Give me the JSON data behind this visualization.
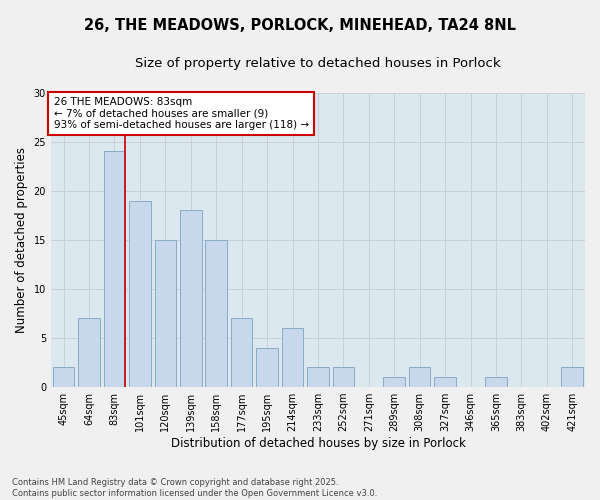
{
  "title_line1": "26, THE MEADOWS, PORLOCK, MINEHEAD, TA24 8NL",
  "title_line2": "Size of property relative to detached houses in Porlock",
  "xlabel": "Distribution of detached houses by size in Porlock",
  "ylabel": "Number of detached properties",
  "categories": [
    "45sqm",
    "64sqm",
    "83sqm",
    "101sqm",
    "120sqm",
    "139sqm",
    "158sqm",
    "177sqm",
    "195sqm",
    "214sqm",
    "233sqm",
    "252sqm",
    "271sqm",
    "289sqm",
    "308sqm",
    "327sqm",
    "346sqm",
    "365sqm",
    "383sqm",
    "402sqm",
    "421sqm"
  ],
  "values": [
    2,
    7,
    24,
    19,
    15,
    18,
    15,
    7,
    4,
    6,
    2,
    2,
    0,
    1,
    2,
    1,
    0,
    1,
    0,
    0,
    2
  ],
  "bar_color": "#c8d8ec",
  "bar_edge_color": "#8aaac8",
  "vline_x_index": 2,
  "vline_color": "#cc0000",
  "annotation_text": "26 THE MEADOWS: 83sqm\n← 7% of detached houses are smaller (9)\n93% of semi-detached houses are larger (118) →",
  "annotation_box_color": "#ffffff",
  "annotation_box_edge": "#cc0000",
  "ylim": [
    0,
    30
  ],
  "yticks": [
    0,
    5,
    10,
    15,
    20,
    25,
    30
  ],
  "grid_color": "#c8d0d8",
  "bg_color": "#dce8f0",
  "fig_bg_color": "#f0f0f0",
  "footer_line1": "Contains HM Land Registry data © Crown copyright and database right 2025.",
  "footer_line2": "Contains public sector information licensed under the Open Government Licence v3.0.",
  "title_fontsize": 10.5,
  "subtitle_fontsize": 9.5,
  "axis_label_fontsize": 8.5,
  "tick_fontsize": 7,
  "annotation_fontsize": 7.5,
  "footer_fontsize": 6
}
